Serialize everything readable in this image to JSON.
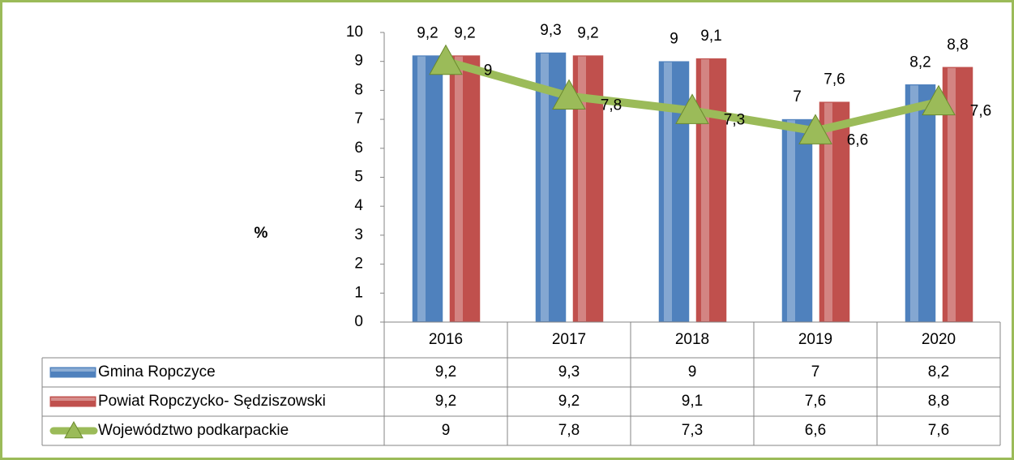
{
  "chart_data": {
    "type": "bar",
    "y_label": "%",
    "categories": [
      "2016",
      "2017",
      "2018",
      "2019",
      "2020"
    ],
    "ylim": [
      0,
      10
    ],
    "yticks": [
      0,
      1,
      2,
      3,
      4,
      5,
      6,
      7,
      8,
      9,
      10
    ],
    "grid": false,
    "series": [
      {
        "name": "Gmina Ropczyce",
        "type": "bar",
        "color": "#4f81bd",
        "values": [
          9.2,
          9.3,
          9,
          7,
          8.2
        ],
        "value_labels": [
          "9,2",
          "9,3",
          "9",
          "7",
          "8,2"
        ]
      },
      {
        "name": "Powiat Ropczycko- Sędziszowski",
        "type": "bar",
        "color": "#c0504d",
        "values": [
          9.2,
          9.2,
          9.1,
          7.6,
          8.8
        ],
        "value_labels": [
          "9,2",
          "9,2",
          "9,1",
          "7,6",
          "8,8"
        ]
      },
      {
        "name": "Województwo podkarpackie",
        "type": "line",
        "color": "#9bbb59",
        "values": [
          9,
          7.8,
          7.3,
          6.6,
          7.6
        ],
        "value_labels": [
          "9",
          "7,8",
          "7,3",
          "6,6",
          "7,6"
        ]
      }
    ]
  }
}
